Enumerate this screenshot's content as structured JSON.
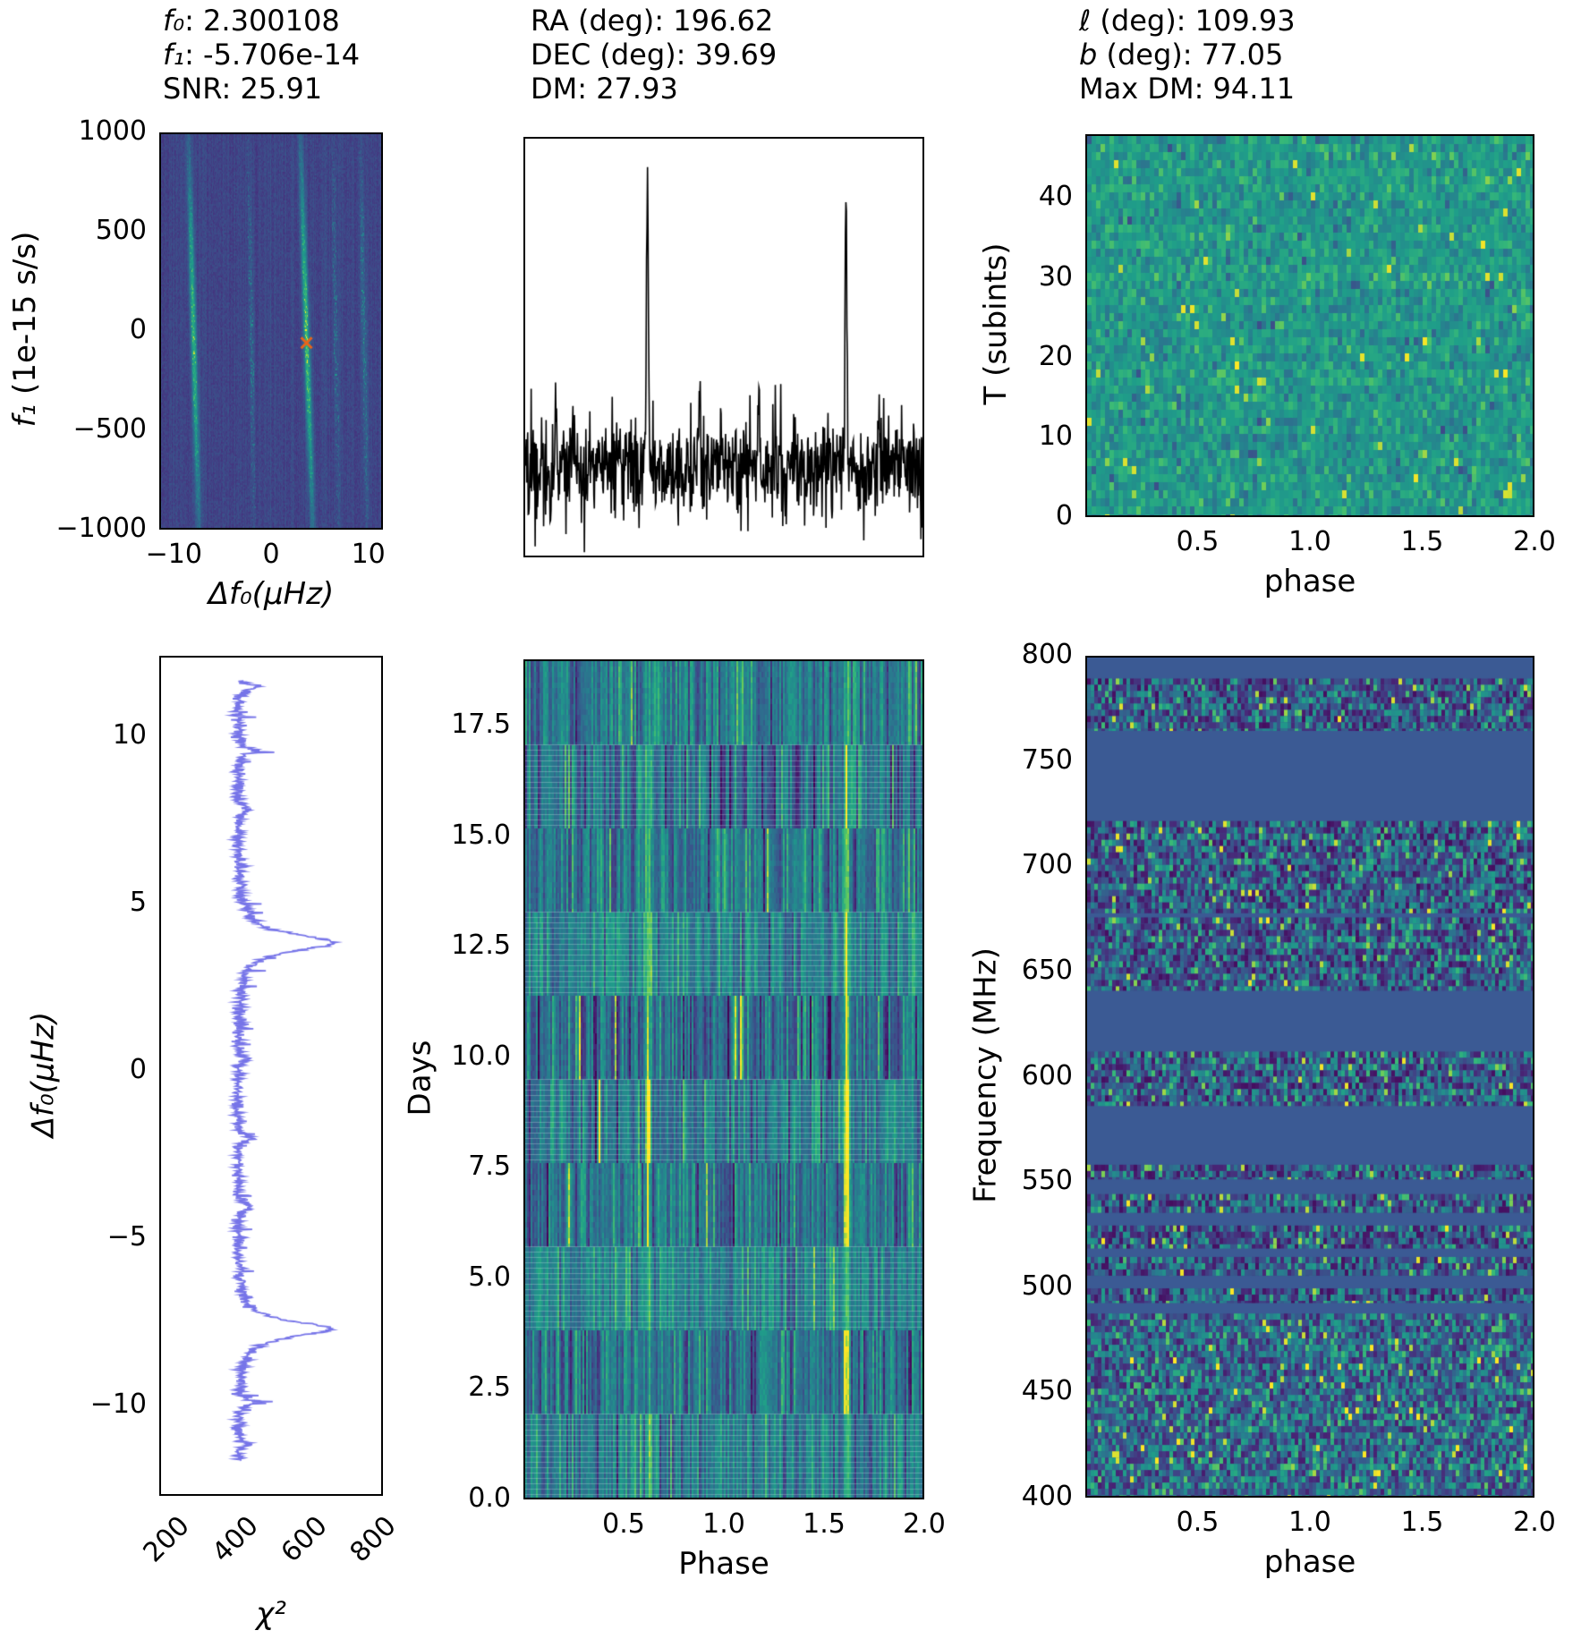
{
  "figure": {
    "background": "#ffffff",
    "colormap": "viridis",
    "colors": {
      "profile_line": "#000000",
      "chi2_line": "#7674e8",
      "marker": "#e8641b",
      "axis": "#000000",
      "masked_band": "#3b5a94"
    }
  },
  "chart_data": [
    {
      "id": "ffdot",
      "type": "heatmap",
      "title_lines": [
        [
          {
            "text": "f₀",
            "italic": true
          },
          {
            "text": ": 2.300108"
          }
        ],
        [
          {
            "text": "f₁",
            "italic": true
          },
          {
            "text": ": -5.706e-14"
          }
        ],
        [
          {
            "text": "SNR: 25.91"
          }
        ]
      ],
      "xlabel": [
        {
          "text": "Δf₀(μHz)",
          "italic": true
        }
      ],
      "ylabel": [
        {
          "text": "f₁",
          "italic": true
        },
        {
          "text": " (1e-15 s/s)"
        }
      ],
      "xlim": [
        -11.5,
        11.5
      ],
      "ylim": [
        -1000,
        1000
      ],
      "xticks": [
        {
          "v": -10,
          "label": "−10"
        },
        {
          "v": 0,
          "label": "0"
        },
        {
          "v": 10,
          "label": "10"
        }
      ],
      "yticks": [
        {
          "v": 1000,
          "label": "1000"
        },
        {
          "v": 500,
          "label": "500"
        },
        {
          "v": 0,
          "label": "0"
        },
        {
          "v": -500,
          "label": "−500"
        },
        {
          "v": -1000,
          "label": "−1000"
        }
      ],
      "background_level": 0.2,
      "streaks": [
        {
          "x_top": -8.7,
          "x_bottom": -7.6,
          "intensity": 0.9
        },
        {
          "x_top": 3.0,
          "x_bottom": 4.3,
          "intensity": 1.0
        },
        {
          "x_top": 9.3,
          "x_bottom": 10.0,
          "intensity": 0.25
        },
        {
          "x_top": -2.4,
          "x_bottom": -1.8,
          "intensity": 0.16
        },
        {
          "x_top": 6.4,
          "x_bottom": 7.0,
          "intensity": 0.12
        }
      ],
      "marker": {
        "x": 3.7,
        "y": -60,
        "glyph": "x",
        "color": "#e8641b"
      }
    },
    {
      "id": "profile",
      "type": "line",
      "title_lines": [
        [
          {
            "text": "RA (deg): 196.62"
          }
        ],
        [
          {
            "text": "DEC (deg): 39.69"
          }
        ],
        [
          {
            "text": "DM: 27.93"
          }
        ]
      ],
      "xlabel": [],
      "ylabel": [],
      "xlim": [
        0,
        2
      ],
      "ylim": [
        -4,
        15
      ],
      "xticks": [
        {
          "v": 0.5,
          "label": ""
        },
        {
          "v": 1.0,
          "label": ""
        },
        {
          "v": 1.5,
          "label": ""
        },
        {
          "v": 2.0,
          "label": ""
        }
      ],
      "yticks": [
        {
          "v": 10,
          "label": ""
        },
        {
          "v": 5,
          "label": ""
        },
        {
          "v": 0,
          "label": ""
        }
      ],
      "line_color": "#000000",
      "noise": {
        "mean": 0,
        "sigma": 1.15
      },
      "peaks": [
        {
          "phase": 0.615,
          "amp": 14.0,
          "sigma": 0.0045
        },
        {
          "phase": 1.615,
          "amp": 13.6,
          "sigma": 0.0045
        },
        {
          "phase": 1.175,
          "amp": 4.3,
          "sigma": 0.004
        },
        {
          "phase": 0.155,
          "amp": 3.8,
          "sigma": 0.004
        },
        {
          "phase": 0.88,
          "amp": 2.6,
          "sigma": 0.004
        },
        {
          "phase": 1.78,
          "amp": 2.4,
          "sigma": 0.004
        }
      ]
    },
    {
      "id": "tphase",
      "type": "heatmap",
      "title_lines": [
        [
          {
            "text": "ℓ",
            "italic": true
          },
          {
            "text": " (deg): 109.93"
          }
        ],
        [
          {
            "text": "b",
            "italic": true
          },
          {
            "text": " (deg): 77.05"
          }
        ],
        [
          {
            "text": "Max DM: 94.11"
          }
        ]
      ],
      "xlabel": [
        {
          "text": "phase"
        }
      ],
      "ylabel": [
        {
          "text": "T (subints)"
        }
      ],
      "xlim": [
        0,
        2
      ],
      "ylim": [
        0,
        48
      ],
      "xticks": [
        {
          "v": 0.5,
          "label": "0.5"
        },
        {
          "v": 1.0,
          "label": "1.0"
        },
        {
          "v": 1.5,
          "label": "1.5"
        },
        {
          "v": 2.0,
          "label": "2.0"
        }
      ],
      "yticks": [
        {
          "v": 0,
          "label": "0"
        },
        {
          "v": 10,
          "label": "10"
        },
        {
          "v": 20,
          "label": "20"
        },
        {
          "v": 30,
          "label": "30"
        },
        {
          "v": 40,
          "label": "40"
        }
      ],
      "noise": {
        "mean": 0.6,
        "sigma": 0.09
      }
    },
    {
      "id": "chi2",
      "type": "line",
      "title_lines": [],
      "xlabel": [
        {
          "text": "χ²",
          "italic": true
        }
      ],
      "ylabel": [
        {
          "text": "Δf₀(μHz)",
          "italic": true
        }
      ],
      "xlim": [
        190,
        840
      ],
      "ylim": [
        -12.7,
        12.4
      ],
      "xticks": [
        {
          "v": 200,
          "label": "200"
        },
        {
          "v": 400,
          "label": "400"
        },
        {
          "v": 600,
          "label": "600"
        },
        {
          "v": 800,
          "label": "800"
        }
      ],
      "xtick_rotation": 45,
      "yticks": [
        {
          "v": 10,
          "label": "10"
        },
        {
          "v": 5,
          "label": "5"
        },
        {
          "v": 0,
          "label": "0"
        },
        {
          "v": -5,
          "label": "−5"
        },
        {
          "v": -10,
          "label": "−10"
        }
      ],
      "line_color": "#7674e8",
      "baseline": 415,
      "noise_sigma": 9,
      "data_yrange": [
        -11.7,
        11.7
      ],
      "peaks": [
        {
          "y": 3.85,
          "amp": 285,
          "w": 0.3
        },
        {
          "y": -7.75,
          "amp": 278,
          "w": 0.28
        },
        {
          "y": 9.6,
          "amp": 50,
          "w": 0.12
        },
        {
          "y": 11.5,
          "amp": 55,
          "w": 0.1
        },
        {
          "y": -2.05,
          "amp": 42,
          "w": 0.1
        },
        {
          "y": -4.1,
          "amp": 34,
          "w": 0.1
        },
        {
          "y": -9.95,
          "amp": 46,
          "w": 0.1
        },
        {
          "y": 7.85,
          "amp": 30,
          "w": 0.1
        },
        {
          "y": -11.2,
          "amp": 30,
          "w": 0.09
        },
        {
          "y": 0.35,
          "amp": 25,
          "w": 0.08
        }
      ]
    },
    {
      "id": "days",
      "type": "heatmap",
      "title_lines": [],
      "xlabel": [
        {
          "text": "Phase"
        }
      ],
      "ylabel": [
        {
          "text": "Days"
        }
      ],
      "xlim": [
        0,
        2
      ],
      "ylim": [
        0,
        19
      ],
      "xticks": [
        {
          "v": 0.5,
          "label": "0.5"
        },
        {
          "v": 1.0,
          "label": "1.0"
        },
        {
          "v": 1.5,
          "label": "1.5"
        },
        {
          "v": 2.0,
          "label": "2.0"
        }
      ],
      "yticks": [
        {
          "v": 0.0,
          "label": "0.0"
        },
        {
          "v": 2.5,
          "label": "2.5"
        },
        {
          "v": 5.0,
          "label": "5.0"
        },
        {
          "v": 7.5,
          "label": "7.5"
        },
        {
          "v": 10.0,
          "label": "10.0"
        },
        {
          "v": 12.5,
          "label": "12.5"
        },
        {
          "v": 15.0,
          "label": "15.0"
        },
        {
          "v": 17.5,
          "label": "17.5"
        }
      ],
      "streak_phases": [
        0.615,
        1.615
      ],
      "bands_order": "bottom-to-top",
      "bands": [
        {
          "base": 0.47,
          "sigma": 0.13,
          "streak_amp": 0.32
        },
        {
          "base": 0.42,
          "sigma": 0.16,
          "streak_amp": 0.28
        },
        {
          "base": 0.5,
          "sigma": 0.12,
          "streak_amp": 0.3
        },
        {
          "base": 0.44,
          "sigma": 0.15,
          "streak_amp": 0.55
        },
        {
          "base": 0.46,
          "sigma": 0.14,
          "streak_amp": 0.9
        },
        {
          "base": 0.41,
          "sigma": 0.17,
          "streak_amp": 0.62
        },
        {
          "base": 0.5,
          "sigma": 0.12,
          "streak_amp": 0.45
        },
        {
          "base": 0.46,
          "sigma": 0.14,
          "streak_amp": 0.4
        },
        {
          "base": 0.43,
          "sigma": 0.16,
          "streak_amp": 0.36
        },
        {
          "base": 0.48,
          "sigma": 0.13,
          "streak_amp": 0.34
        }
      ]
    },
    {
      "id": "freq",
      "type": "heatmap",
      "title_lines": [],
      "xlabel": [
        {
          "text": "phase"
        }
      ],
      "ylabel": [
        {
          "text": "Frequency (MHz)"
        }
      ],
      "xlim": [
        0,
        2
      ],
      "ylim": [
        400,
        800
      ],
      "xticks": [
        {
          "v": 0.5,
          "label": "0.5"
        },
        {
          "v": 1.0,
          "label": "1.0"
        },
        {
          "v": 1.5,
          "label": "1.5"
        },
        {
          "v": 2.0,
          "label": "2.0"
        }
      ],
      "yticks": [
        {
          "v": 800,
          "label": "800"
        },
        {
          "v": 750,
          "label": "750"
        },
        {
          "v": 700,
          "label": "700"
        },
        {
          "v": 650,
          "label": "650"
        },
        {
          "v": 600,
          "label": "600"
        },
        {
          "v": 550,
          "label": "550"
        },
        {
          "v": 500,
          "label": "500"
        },
        {
          "v": 450,
          "label": "450"
        },
        {
          "v": 400,
          "label": "400"
        }
      ],
      "masked_color": "#3b5a94",
      "noisy_bands_mhz": [
        [
          765,
          790
        ],
        [
          678,
          722
        ],
        [
          641,
          676
        ],
        [
          586,
          612
        ],
        [
          551,
          558
        ],
        [
          535,
          544
        ],
        [
          518,
          529
        ],
        [
          505,
          514
        ],
        [
          492,
          499
        ],
        [
          400,
          487
        ]
      ]
    }
  ]
}
